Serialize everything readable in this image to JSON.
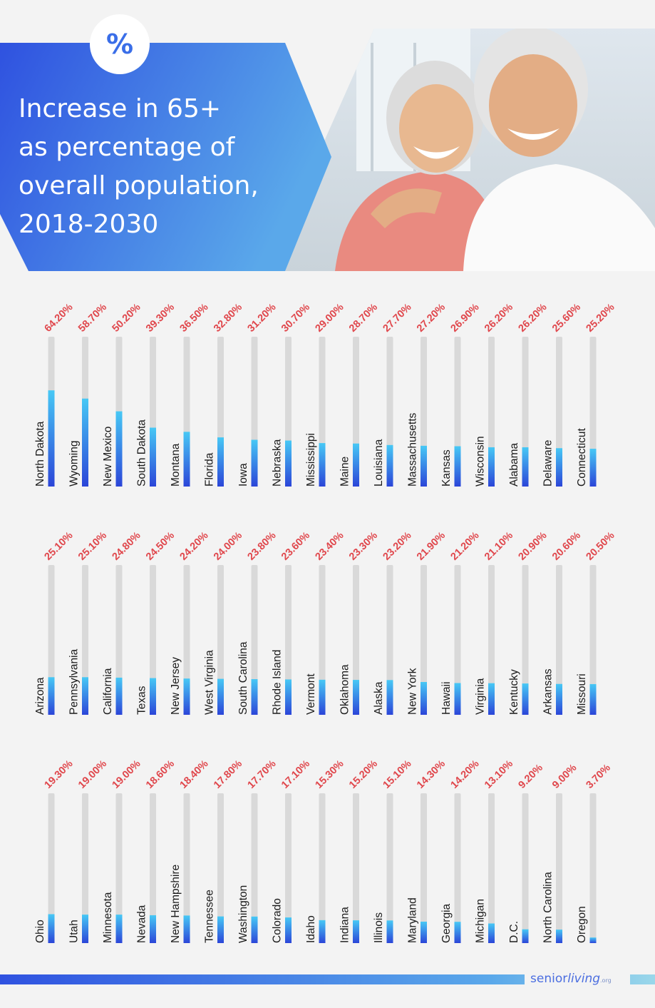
{
  "header": {
    "badge": "%",
    "title_lines": [
      "Increase in 65+",
      "as percentage of",
      "overall population,",
      "2018-2030"
    ]
  },
  "brand": {
    "part1": "senior",
    "part2": "living",
    "part3": ".org"
  },
  "colors": {
    "bar_gradient_top": "#47c8f5",
    "bar_gradient_bottom": "#2b45d8",
    "track": "#d9d9d9",
    "value_label": "#e0474c",
    "header_blue_dark": "#2f52e0",
    "header_blue_light": "#5aa8ea"
  },
  "chart_data": {
    "type": "bar",
    "orientation": "vertical",
    "value_unit": "%",
    "ylim": [
      0,
      100
    ],
    "rows": [
      {
        "categories": [
          "North Dakota",
          "Wyoming",
          "New Mexico",
          "South Dakota",
          "Montana",
          "Florida",
          "Iowa",
          "Nebraska",
          "Mississippi",
          "Maine",
          "Louisiana",
          "Massachusetts",
          "Kansas",
          "Wisconsin",
          "Alabama",
          "Delaware",
          "Connecticut"
        ],
        "values": [
          64.2,
          58.7,
          50.2,
          39.3,
          36.5,
          32.8,
          31.2,
          30.7,
          29.0,
          28.7,
          27.7,
          27.2,
          26.9,
          26.2,
          26.2,
          25.6,
          25.2
        ],
        "labels": [
          "64.20%",
          "58.70%",
          "50.20%",
          "39.30%",
          "36.50%",
          "32.80%",
          "31.20%",
          "30.70%",
          "29.00%",
          "28.70%",
          "27.70%",
          "27.20%",
          "26.90%",
          "26.20%",
          "26.20%",
          "25.60%",
          "25.20%"
        ]
      },
      {
        "categories": [
          "Arizona",
          "Pennsylvania",
          "California",
          "Texas",
          "New Jersey",
          "West Virginia",
          "South Carolina",
          "Rhode Island",
          "Vermont",
          "Oklahoma",
          "Alaska",
          "New York",
          "Hawaii",
          "Virginia",
          "Kentucky",
          "Arkansas",
          "Missouri"
        ],
        "values": [
          25.1,
          25.1,
          24.8,
          24.5,
          24.2,
          24.0,
          23.8,
          23.6,
          23.4,
          23.3,
          23.2,
          21.9,
          21.2,
          21.1,
          20.9,
          20.6,
          20.5
        ],
        "labels": [
          "25.10%",
          "25.10%",
          "24.80%",
          "24.50%",
          "24.20%",
          "24.00%",
          "23.80%",
          "23.60%",
          "23.40%",
          "23.30%",
          "23.20%",
          "21.90%",
          "21.20%",
          "21.10%",
          "20.90%",
          "20.60%",
          "20.50%"
        ]
      },
      {
        "categories": [
          "Ohio",
          "Utah",
          "Minnesota",
          "Nevada",
          "New Hampshire",
          "Tennessee",
          "Washington",
          "Colorado",
          "Idaho",
          "Indiana",
          "Illinois",
          "Maryland",
          "Georgia",
          "Michigan",
          "D.C.",
          "North Carolina",
          "Oregon"
        ],
        "values": [
          19.3,
          19.0,
          19.0,
          18.6,
          18.4,
          17.8,
          17.7,
          17.1,
          15.3,
          15.2,
          15.1,
          14.3,
          14.2,
          13.1,
          9.2,
          9.0,
          3.7
        ],
        "labels": [
          "19.30%",
          "19.00%",
          "19.00%",
          "18.60%",
          "18.40%",
          "17.80%",
          "17.70%",
          "17.10%",
          "15.30%",
          "15.20%",
          "15.10%",
          "14.30%",
          "14.20%",
          "13.10%",
          "9.20%",
          "9.00%",
          "3.70%"
        ]
      }
    ]
  }
}
